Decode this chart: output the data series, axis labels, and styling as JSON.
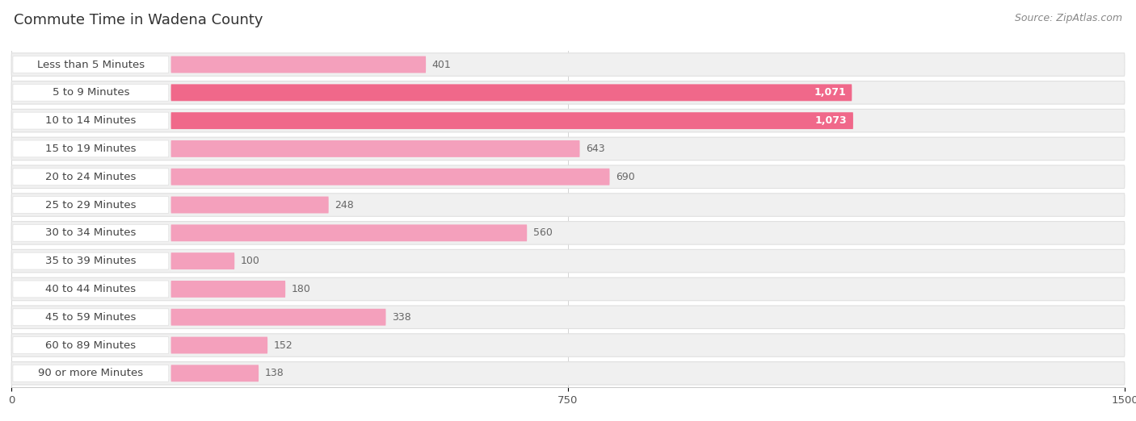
{
  "title": "Commute Time in Wadena County",
  "source": "Source: ZipAtlas.com",
  "categories": [
    "Less than 5 Minutes",
    "5 to 9 Minutes",
    "10 to 14 Minutes",
    "15 to 19 Minutes",
    "20 to 24 Minutes",
    "25 to 29 Minutes",
    "30 to 34 Minutes",
    "35 to 39 Minutes",
    "40 to 44 Minutes",
    "45 to 59 Minutes",
    "60 to 89 Minutes",
    "90 or more Minutes"
  ],
  "values": [
    401,
    1071,
    1073,
    643,
    690,
    248,
    560,
    100,
    180,
    338,
    152,
    138
  ],
  "bar_color_high": "#f0688a",
  "bar_color_low": "#f4a0bc",
  "row_bg_color": "#f0f0f0",
  "row_border_color": "#e0e0e0",
  "label_bg_color": "#ffffff",
  "xlim": [
    0,
    1500
  ],
  "xticks": [
    0,
    750,
    1500
  ],
  "title_fontsize": 13,
  "label_fontsize": 9.5,
  "value_fontsize": 9,
  "source_fontsize": 9,
  "threshold_high": 900
}
